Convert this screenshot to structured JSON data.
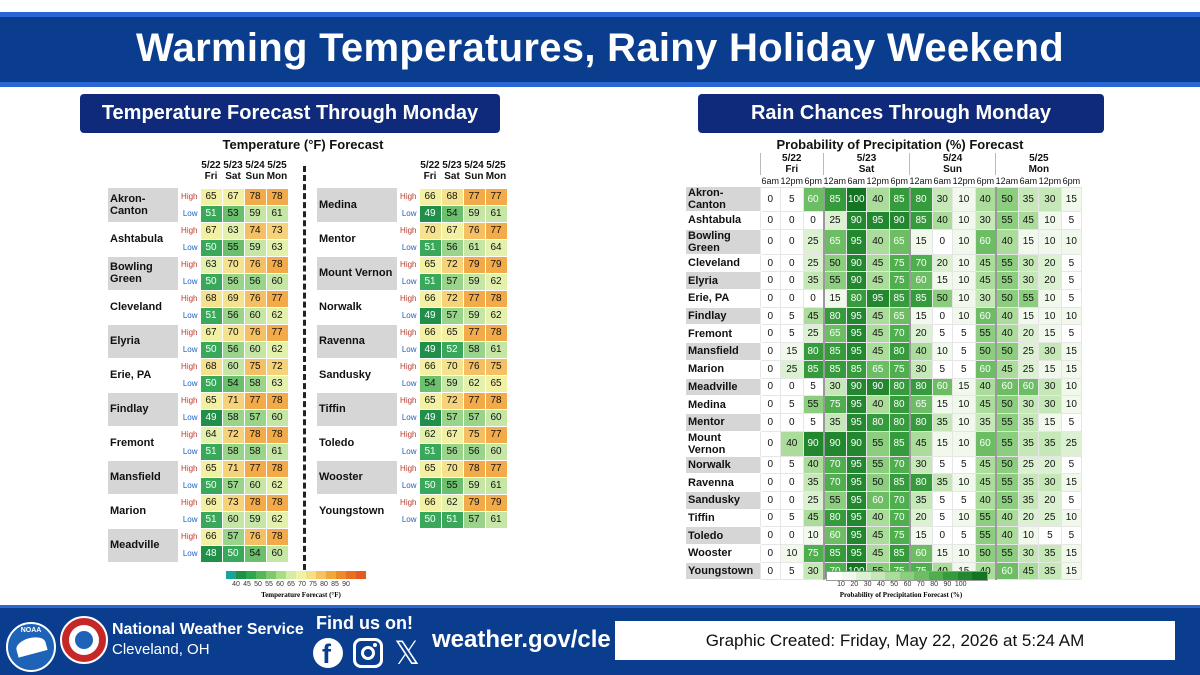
{
  "title": "Warming Temperatures, Rainy Holiday Weekend",
  "temp_section": {
    "banner": "Temperature Forecast Through Monday",
    "chart_title": "Temperature (°F) Forecast",
    "dates": [
      "5/22",
      "5/23",
      "5/24",
      "5/25"
    ],
    "days": [
      "Fri",
      "Sat",
      "Sun",
      "Mon"
    ],
    "high_label": "High",
    "low_label": "Low",
    "legend_title": "Temperature Forecast (°F)",
    "legend_ticks": [
      "40",
      "45",
      "50",
      "55",
      "60",
      "65",
      "70",
      "75",
      "80",
      "85",
      "90"
    ],
    "legend_colors": [
      "#1aa39a",
      "#1f8f4a",
      "#2ea64d",
      "#55b75a",
      "#7fca6a",
      "#a8dc86",
      "#d3eda5",
      "#eef2a5",
      "#f4de86",
      "#f5c260",
      "#f3a63a",
      "#ee8a2a",
      "#e86e22",
      "#e35a1f"
    ],
    "cities_left": [
      {
        "name": "Akron-Canton",
        "high": [
          65,
          67,
          78,
          78
        ],
        "low": [
          51,
          53,
          59,
          61
        ]
      },
      {
        "name": "Ashtabula",
        "high": [
          67,
          63,
          74,
          73
        ],
        "low": [
          50,
          55,
          59,
          63
        ]
      },
      {
        "name": "Bowling Green",
        "high": [
          63,
          70,
          76,
          78
        ],
        "low": [
          50,
          56,
          56,
          60
        ]
      },
      {
        "name": "Cleveland",
        "high": [
          68,
          69,
          76,
          77
        ],
        "low": [
          51,
          56,
          60,
          62
        ]
      },
      {
        "name": "Elyria",
        "high": [
          67,
          70,
          76,
          77
        ],
        "low": [
          50,
          56,
          60,
          62
        ]
      },
      {
        "name": "Erie, PA",
        "high": [
          68,
          60,
          75,
          72
        ],
        "low": [
          50,
          54,
          58,
          63
        ]
      },
      {
        "name": "Findlay",
        "high": [
          65,
          71,
          77,
          78
        ],
        "low": [
          49,
          58,
          57,
          60
        ]
      },
      {
        "name": "Fremont",
        "high": [
          64,
          72,
          78,
          78
        ],
        "low": [
          51,
          58,
          58,
          61
        ]
      },
      {
        "name": "Mansfield",
        "high": [
          65,
          71,
          77,
          78
        ],
        "low": [
          50,
          57,
          60,
          62
        ]
      },
      {
        "name": "Marion",
        "high": [
          66,
          73,
          78,
          78
        ],
        "low": [
          51,
          60,
          59,
          62
        ]
      },
      {
        "name": "Meadville",
        "high": [
          66,
          57,
          76,
          78
        ],
        "low": [
          48,
          50,
          54,
          60
        ]
      }
    ],
    "cities_right": [
      {
        "name": "Medina",
        "high": [
          66,
          68,
          77,
          77
        ],
        "low": [
          49,
          54,
          59,
          61
        ]
      },
      {
        "name": "Mentor",
        "high": [
          70,
          67,
          76,
          77
        ],
        "low": [
          51,
          56,
          61,
          64
        ]
      },
      {
        "name": "Mount Vernon",
        "high": [
          65,
          72,
          79,
          79
        ],
        "low": [
          51,
          57,
          59,
          62
        ]
      },
      {
        "name": "Norwalk",
        "high": [
          66,
          72,
          77,
          78
        ],
        "low": [
          49,
          57,
          59,
          62
        ]
      },
      {
        "name": "Ravenna",
        "high": [
          66,
          65,
          77,
          78
        ],
        "low": [
          49,
          52,
          58,
          61
        ]
      },
      {
        "name": "Sandusky",
        "high": [
          66,
          70,
          76,
          75
        ],
        "low": [
          54,
          59,
          62,
          65
        ]
      },
      {
        "name": "Tiffin",
        "high": [
          65,
          72,
          77,
          78
        ],
        "low": [
          49,
          57,
          57,
          60
        ]
      },
      {
        "name": "Toledo",
        "high": [
          62,
          67,
          75,
          77
        ],
        "low": [
          51,
          56,
          56,
          60
        ]
      },
      {
        "name": "Wooster",
        "high": [
          65,
          70,
          78,
          77
        ],
        "low": [
          50,
          55,
          59,
          61
        ]
      },
      {
        "name": "Youngstown",
        "high": [
          66,
          62,
          79,
          79
        ],
        "low": [
          50,
          51,
          57,
          61
        ]
      }
    ]
  },
  "rain_section": {
    "banner": "Rain Chances Through Monday",
    "chart_title": "Probability of Precipitation (%) Forecast",
    "day_groups": [
      {
        "date": "5/22",
        "day": "Fri",
        "hours": [
          "6am",
          "12pm",
          "6pm"
        ]
      },
      {
        "date": "5/23",
        "day": "Sat",
        "hours": [
          "12am",
          "6am",
          "12pm",
          "6pm"
        ]
      },
      {
        "date": "5/24",
        "day": "Sun",
        "hours": [
          "12am",
          "6am",
          "12pm",
          "6pm"
        ]
      },
      {
        "date": "5/25",
        "day": "Mon",
        "hours": [
          "12am",
          "6am",
          "12pm",
          "6pm"
        ]
      }
    ],
    "legend_title": "Probability of Precipitation Forecast (%)",
    "legend_ticks": [
      "10",
      "20",
      "30",
      "40",
      "50",
      "60",
      "70",
      "80",
      "90",
      "100"
    ],
    "cities": [
      {
        "name": "Akron-Canton",
        "values": [
          0,
          5,
          60,
          85,
          100,
          40,
          85,
          80,
          30,
          10,
          40,
          50,
          35,
          30,
          15
        ]
      },
      {
        "name": "Ashtabula",
        "values": [
          0,
          0,
          0,
          25,
          90,
          95,
          90,
          85,
          40,
          10,
          30,
          55,
          45,
          10,
          5
        ]
      },
      {
        "name": "Bowling Green",
        "values": [
          0,
          0,
          25,
          65,
          95,
          40,
          65,
          15,
          0,
          10,
          60,
          40,
          15,
          10,
          10
        ]
      },
      {
        "name": "Cleveland",
        "values": [
          0,
          0,
          25,
          50,
          90,
          45,
          75,
          70,
          20,
          10,
          45,
          55,
          30,
          20,
          5
        ]
      },
      {
        "name": "Elyria",
        "values": [
          0,
          0,
          35,
          55,
          90,
          45,
          75,
          60,
          15,
          10,
          45,
          55,
          30,
          20,
          5
        ]
      },
      {
        "name": "Erie, PA",
        "values": [
          0,
          0,
          0,
          15,
          80,
          95,
          85,
          85,
          50,
          10,
          30,
          50,
          55,
          10,
          5
        ]
      },
      {
        "name": "Findlay",
        "values": [
          0,
          5,
          45,
          80,
          95,
          45,
          65,
          15,
          0,
          10,
          60,
          40,
          15,
          10,
          10
        ]
      },
      {
        "name": "Fremont",
        "values": [
          0,
          5,
          25,
          65,
          95,
          45,
          70,
          20,
          5,
          5,
          55,
          40,
          20,
          15,
          5
        ]
      },
      {
        "name": "Mansfield",
        "values": [
          0,
          15,
          80,
          85,
          95,
          45,
          80,
          40,
          10,
          5,
          50,
          50,
          25,
          30,
          15
        ]
      },
      {
        "name": "Marion",
        "values": [
          0,
          25,
          85,
          85,
          85,
          65,
          75,
          30,
          5,
          5,
          60,
          45,
          25,
          15,
          15
        ]
      },
      {
        "name": "Meadville",
        "values": [
          0,
          0,
          5,
          30,
          90,
          90,
          80,
          80,
          60,
          15,
          40,
          60,
          60,
          30,
          10
        ]
      },
      {
        "name": "Medina",
        "values": [
          0,
          5,
          55,
          75,
          95,
          40,
          80,
          65,
          15,
          10,
          45,
          50,
          30,
          30,
          10
        ]
      },
      {
        "name": "Mentor",
        "values": [
          0,
          0,
          5,
          35,
          95,
          80,
          80,
          80,
          35,
          10,
          35,
          55,
          35,
          15,
          5
        ]
      },
      {
        "name": "Mount Vernon",
        "values": [
          0,
          40,
          90,
          90,
          90,
          55,
          85,
          45,
          15,
          10,
          60,
          55,
          35,
          35,
          25
        ]
      },
      {
        "name": "Norwalk",
        "values": [
          0,
          5,
          40,
          70,
          95,
          55,
          70,
          30,
          5,
          5,
          45,
          50,
          25,
          20,
          5
        ]
      },
      {
        "name": "Ravenna",
        "values": [
          0,
          0,
          35,
          70,
          95,
          50,
          85,
          80,
          35,
          10,
          45,
          55,
          35,
          30,
          15
        ]
      },
      {
        "name": "Sandusky",
        "values": [
          0,
          0,
          25,
          55,
          95,
          60,
          70,
          35,
          5,
          5,
          40,
          55,
          35,
          20,
          5
        ]
      },
      {
        "name": "Tiffin",
        "values": [
          0,
          5,
          45,
          80,
          95,
          40,
          70,
          20,
          5,
          10,
          55,
          40,
          20,
          25,
          10
        ]
      },
      {
        "name": "Toledo",
        "values": [
          0,
          0,
          10,
          60,
          95,
          45,
          75,
          15,
          0,
          5,
          55,
          40,
          10,
          5,
          5
        ]
      },
      {
        "name": "Wooster",
        "values": [
          0,
          10,
          75,
          85,
          95,
          45,
          85,
          60,
          15,
          10,
          50,
          55,
          30,
          35,
          15
        ]
      },
      {
        "name": "Youngstown",
        "values": [
          0,
          5,
          30,
          70,
          100,
          55,
          75,
          75,
          40,
          15,
          40,
          60,
          45,
          35,
          15
        ]
      }
    ]
  },
  "footer": {
    "noaa_label": "NOAA",
    "org_name": "National Weather Service",
    "office": "Cleveland, OH",
    "find_us": "Find us on!",
    "website": "weather.gov/cle",
    "created": "Graphic Created: Friday, May 22, 2026 at 5:24 AM",
    "icons": [
      "facebook-icon",
      "instagram-icon",
      "x-icon"
    ]
  }
}
